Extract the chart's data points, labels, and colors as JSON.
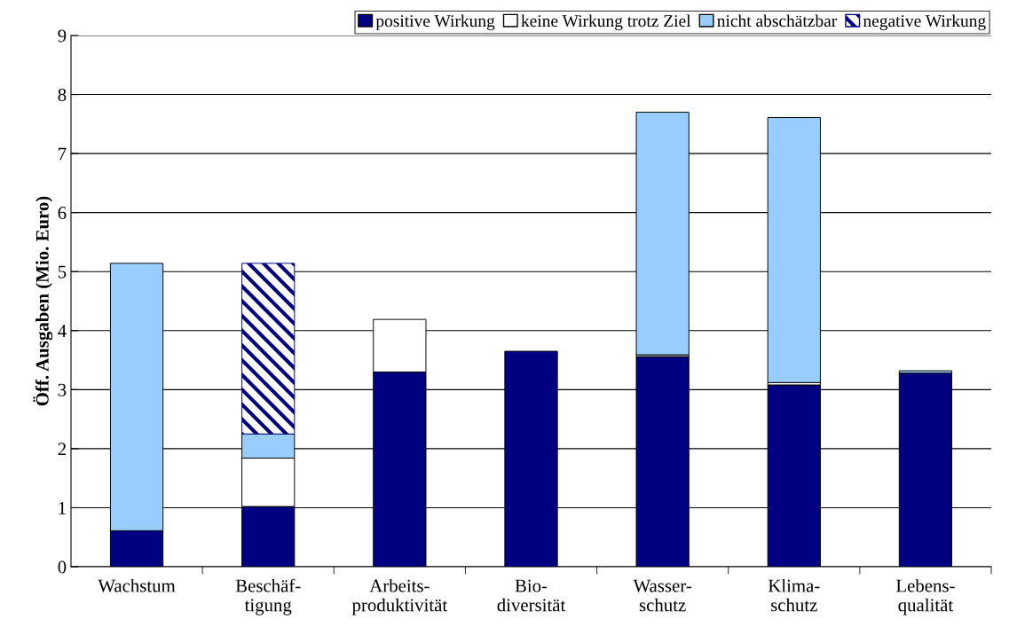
{
  "chart_data": {
    "type": "bar",
    "stacked": true,
    "ylabel": "Öff. Ausgaben (Mio. Euro)",
    "categories": [
      "Wachstum",
      "Beschäf-\ntigung",
      "Arbeits-\nproduktivität",
      "Bio-\ndiversität",
      "Wasser-\nschutz",
      "Klima-\nschutz",
      "Lebens-\nqualität"
    ],
    "series": [
      {
        "name": "positive Wirkung",
        "color": "#000080",
        "values": [
          0.61,
          1.02,
          3.3,
          3.65,
          3.56,
          3.08,
          3.28
        ]
      },
      {
        "name": "keine Wirkung trotz Ziel",
        "color": "#ffffff",
        "values": [
          null,
          0.82,
          0.89,
          null,
          0.03,
          0.04,
          null
        ]
      },
      {
        "name": "nicht abschätzbar",
        "color": "#99ccff",
        "values": [
          4.53,
          0.41,
          null,
          null,
          4.11,
          4.49,
          0.04
        ]
      },
      {
        "name": "negative Wirkung",
        "color": "#000080",
        "values": [
          null,
          2.89,
          null,
          null,
          null,
          null,
          null
        ]
      }
    ],
    "ylim": [
      0,
      9
    ],
    "yticks": [
      0,
      1,
      2,
      3,
      4,
      5,
      6,
      7,
      8,
      9
    ],
    "grid": "y",
    "legend": "top right"
  }
}
